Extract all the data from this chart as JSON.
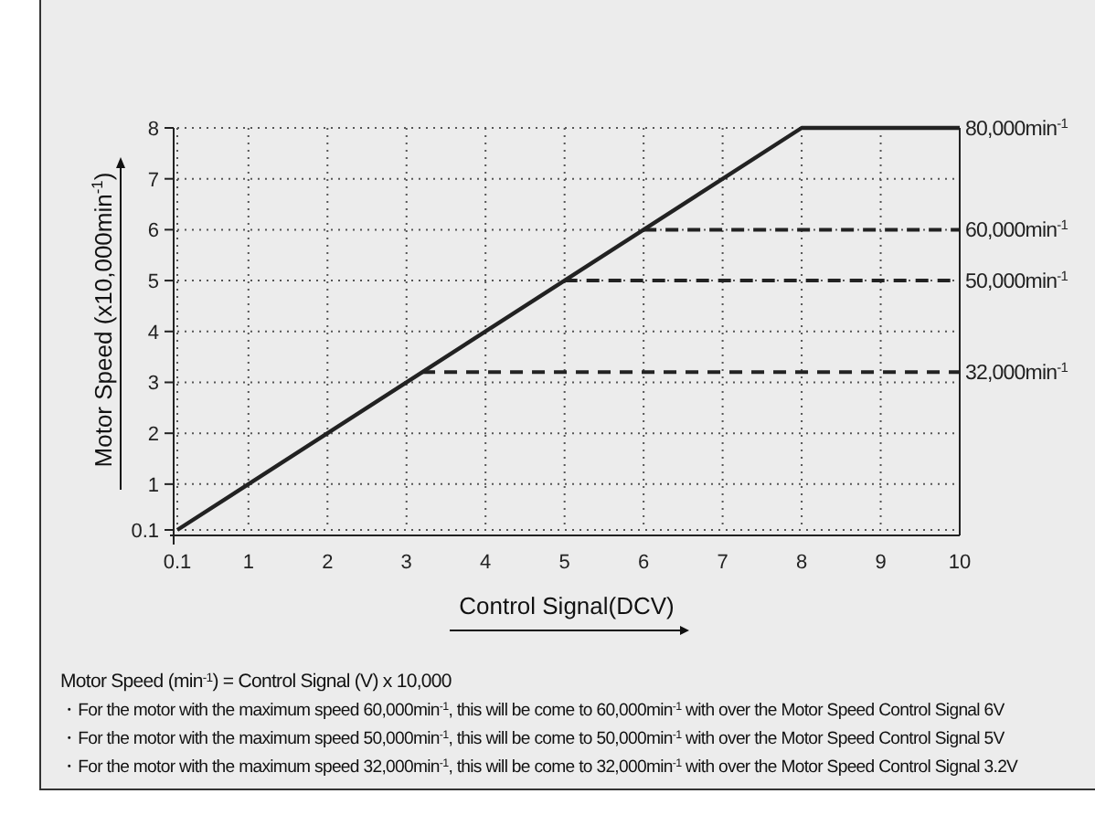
{
  "chart_data": {
    "type": "line",
    "xlabel": "Control Signal(DCV)",
    "ylabel": "Motor Speed (x10,000min$^{-1}$)",
    "xlim": [
      0.1,
      10
    ],
    "xticks": [
      0.1,
      1,
      2,
      3,
      4,
      5,
      6,
      7,
      8,
      9,
      10
    ],
    "ylim": [
      0.1,
      8
    ],
    "yticks": [
      0.1,
      1,
      2,
      3,
      4,
      5,
      6,
      7,
      8
    ],
    "grid": true,
    "series": [
      {
        "name": "80,000min$^{-1}$",
        "color": "#222222",
        "x": [
          0.1,
          8,
          10
        ],
        "values": [
          0.1,
          8,
          8
        ],
        "line_style": "solid"
      },
      {
        "name": "60,000min$^{-1}$",
        "color": "#222222",
        "x": [
          6,
          10
        ],
        "values": [
          6,
          6
        ],
        "line_style": "dashed"
      },
      {
        "name": "50,000min$^{-1}$",
        "color": "#222222",
        "x": [
          5,
          10
        ],
        "values": [
          5,
          5
        ],
        "line_style": "dashed"
      },
      {
        "name": "32,000min$^{-1}$",
        "color": "#222222",
        "x": [
          3.2,
          10
        ],
        "values": [
          3.2,
          3.2
        ],
        "line_style": "dashed"
      }
    ],
    "annotations": [
      "Motor Speed (min$^{-1}$) = Control Signal (V) x 10,000",
      "・For the motor with the maximum speed 60,000min$^{-1}$, this will be come to 60,000min$^{-1}$ with over the Motor Speed Control Signal 6V",
      "・For the motor with the maximum speed 50,000min$^{-1}$, this will be come to 50,000min$^{-1}$ with over the Motor Speed Control Signal 5V",
      "・For the motor with the maximum speed 32,000min$^{-1}$, this will be come to 32,000min$^{-1}$ with over the Motor Speed Control Signal 3.2V"
    ]
  }
}
